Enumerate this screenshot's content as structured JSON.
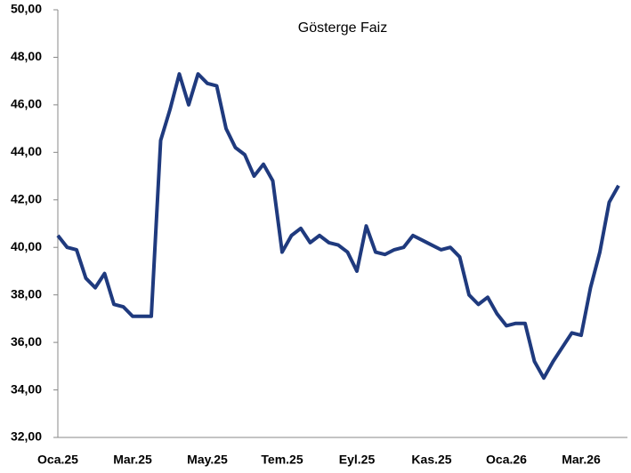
{
  "chart_data": {
    "type": "line",
    "title": "Gösterge Faiz",
    "categories": [
      "Oca.25",
      null,
      null,
      null,
      null,
      null,
      null,
      null,
      "Mar.25",
      null,
      null,
      null,
      null,
      null,
      null,
      null,
      "May.25",
      null,
      null,
      null,
      null,
      null,
      null,
      null,
      "Tem.25",
      null,
      null,
      null,
      null,
      null,
      null,
      null,
      "Eyl.25",
      null,
      null,
      null,
      null,
      null,
      null,
      null,
      "Kas.25",
      null,
      null,
      null,
      null,
      null,
      null,
      null,
      "Oca.26",
      null,
      null,
      null,
      null,
      null,
      null,
      null,
      "Mar.26",
      null,
      null,
      null,
      null
    ],
    "series": [
      {
        "name": "Gösterge Faiz",
        "color": "#1f3a7e",
        "values": [
          40.5,
          40.0,
          39.9,
          38.7,
          38.3,
          38.9,
          37.6,
          37.5,
          37.1,
          37.1,
          37.1,
          44.5,
          45.8,
          47.3,
          46.0,
          47.3,
          46.9,
          46.8,
          45.0,
          44.2,
          43.9,
          43.0,
          43.5,
          42.8,
          39.8,
          40.5,
          40.8,
          40.2,
          40.5,
          40.2,
          40.1,
          39.8,
          39.0,
          40.9,
          39.8,
          39.7,
          39.9,
          40.0,
          40.5,
          40.3,
          40.1,
          39.9,
          40.0,
          39.6,
          38.0,
          37.6,
          37.9,
          37.2,
          36.7,
          36.8,
          36.8,
          35.2,
          34.5,
          35.2,
          35.8,
          36.4,
          36.3,
          38.3,
          39.8,
          41.9,
          42.6
        ]
      }
    ],
    "ylim": [
      32,
      50
    ],
    "yticks": [
      {
        "value": 32,
        "label": "32,00"
      },
      {
        "value": 34,
        "label": "34,00"
      },
      {
        "value": 36,
        "label": "36,00"
      },
      {
        "value": 38,
        "label": "38,00"
      },
      {
        "value": 40,
        "label": "40,00"
      },
      {
        "value": 42,
        "label": "42,00"
      },
      {
        "value": 44,
        "label": "44,00"
      },
      {
        "value": 46,
        "label": "46,00"
      },
      {
        "value": 48,
        "label": "48,00"
      },
      {
        "value": 50,
        "label": "50,00"
      }
    ]
  }
}
